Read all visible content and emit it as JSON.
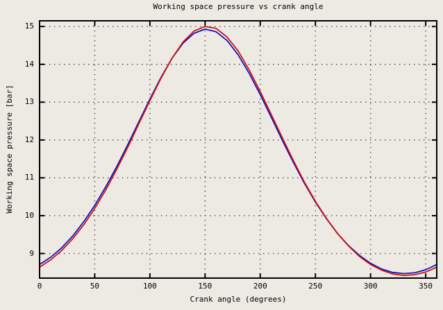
{
  "chart_data": {
    "type": "line",
    "title": "Working space pressure vs crank angle",
    "xlabel": "Crank angle (degrees)",
    "ylabel": "Working space pressure [bar]",
    "xlim": [
      0,
      360
    ],
    "ylim": [
      8.35,
      15.15
    ],
    "xticks": [
      0,
      50,
      100,
      150,
      200,
      250,
      300,
      350
    ],
    "yticks": [
      9,
      10,
      11,
      12,
      13,
      14,
      15
    ],
    "grid": true,
    "legend": "none",
    "colors": {
      "background": "#edeae3",
      "border": "#000000",
      "grid": "#444444",
      "text": "#000000"
    },
    "x": [
      0,
      10,
      20,
      30,
      40,
      50,
      60,
      70,
      80,
      90,
      100,
      110,
      120,
      130,
      140,
      150,
      160,
      170,
      180,
      190,
      200,
      210,
      220,
      230,
      240,
      250,
      260,
      270,
      280,
      290,
      300,
      310,
      320,
      330,
      340,
      350,
      360
    ],
    "series": [
      {
        "name": "blue-curve",
        "color": "#1111bb",
        "values": [
          8.71,
          8.9,
          9.15,
          9.46,
          9.84,
          10.27,
          10.76,
          11.3,
          11.88,
          12.48,
          13.08,
          13.65,
          14.16,
          14.56,
          14.82,
          14.93,
          14.86,
          14.63,
          14.25,
          13.76,
          13.2,
          12.6,
          11.99,
          11.41,
          10.86,
          10.36,
          9.92,
          9.53,
          9.21,
          8.95,
          8.74,
          8.59,
          8.5,
          8.47,
          8.49,
          8.57,
          8.71
        ]
      },
      {
        "name": "red-curve",
        "color": "#cc1111",
        "values": [
          8.64,
          8.83,
          9.08,
          9.39,
          9.76,
          10.19,
          10.68,
          11.23,
          11.81,
          12.43,
          13.04,
          13.63,
          14.16,
          14.59,
          14.88,
          15.0,
          14.95,
          14.72,
          14.35,
          13.85,
          13.28,
          12.67,
          12.06,
          11.46,
          10.89,
          10.38,
          9.93,
          9.53,
          9.2,
          8.92,
          8.71,
          8.56,
          8.46,
          8.42,
          8.44,
          8.51,
          8.64
        ]
      }
    ]
  }
}
